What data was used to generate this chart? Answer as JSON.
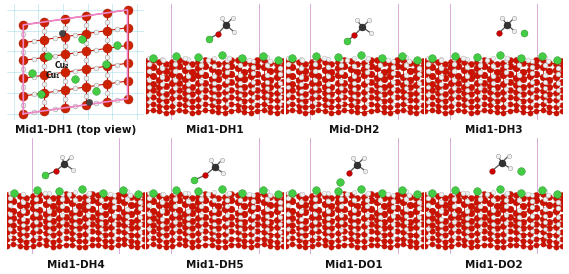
{
  "panels": [
    {
      "label": "Mid1-DH1 (top view)",
      "row": 0,
      "col": 0,
      "is_top_view": true
    },
    {
      "label": "Mid1-DH1",
      "row": 0,
      "col": 1,
      "is_top_view": false
    },
    {
      "label": "Mid-DH2",
      "row": 0,
      "col": 2,
      "is_top_view": false
    },
    {
      "label": "Mid1-DH3",
      "row": 0,
      "col": 3,
      "is_top_view": false
    },
    {
      "label": "Mid1-DH4",
      "row": 1,
      "col": 0,
      "is_top_view": false
    },
    {
      "label": "Mid1-DH5",
      "row": 1,
      "col": 1,
      "is_top_view": false
    },
    {
      "label": "Mid1-DO1",
      "row": 1,
      "col": 2,
      "is_top_view": false
    },
    {
      "label": "Mid1-DO2",
      "row": 1,
      "col": 3,
      "is_top_view": false
    }
  ],
  "bg_color": "#ffffff",
  "panel_border_color": "#ddb8dd",
  "label_fontsize": 7.5,
  "label_fontweight": "bold",
  "figsize": [
    5.69,
    2.74
  ],
  "dpi": 100
}
